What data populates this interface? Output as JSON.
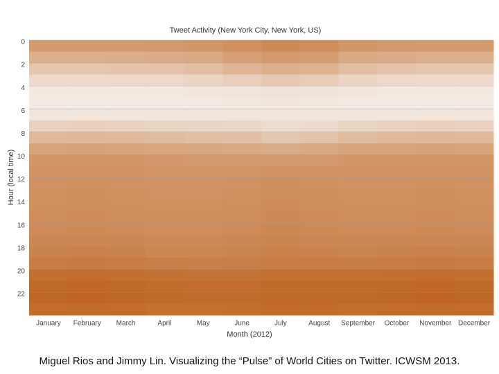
{
  "chart_data": {
    "type": "heatmap",
    "title": "Tweet Activity (New York City, New York, US)",
    "x_label": "Month (2012)",
    "y_label": "Hour (local time)",
    "categories": [
      "January",
      "February",
      "March",
      "April",
      "May",
      "June",
      "July",
      "August",
      "September",
      "October",
      "November",
      "December"
    ],
    "ylim": [
      0,
      24
    ],
    "yticks": [
      0,
      2,
      4,
      6,
      8,
      10,
      12,
      14,
      16,
      18,
      20,
      22
    ],
    "grid": true,
    "colorscale": [
      "#f6f2ee",
      "#b85408"
    ],
    "values": [
      [
        0.55,
        0.55,
        0.55,
        0.56,
        0.58,
        0.62,
        0.66,
        0.64,
        0.58,
        0.56,
        0.55,
        0.55
      ],
      [
        0.42,
        0.42,
        0.43,
        0.44,
        0.46,
        0.52,
        0.56,
        0.54,
        0.46,
        0.44,
        0.42,
        0.42
      ],
      [
        0.28,
        0.28,
        0.29,
        0.3,
        0.32,
        0.38,
        0.42,
        0.4,
        0.32,
        0.3,
        0.28,
        0.28
      ],
      [
        0.15,
        0.15,
        0.16,
        0.16,
        0.18,
        0.22,
        0.26,
        0.24,
        0.18,
        0.16,
        0.15,
        0.15
      ],
      [
        0.06,
        0.06,
        0.06,
        0.06,
        0.07,
        0.08,
        0.1,
        0.09,
        0.07,
        0.06,
        0.06,
        0.06
      ],
      [
        0.05,
        0.05,
        0.05,
        0.05,
        0.05,
        0.06,
        0.07,
        0.06,
        0.05,
        0.05,
        0.05,
        0.05
      ],
      [
        0.08,
        0.08,
        0.08,
        0.08,
        0.08,
        0.08,
        0.07,
        0.07,
        0.08,
        0.08,
        0.08,
        0.08
      ],
      [
        0.2,
        0.21,
        0.2,
        0.19,
        0.18,
        0.17,
        0.14,
        0.15,
        0.19,
        0.2,
        0.21,
        0.2
      ],
      [
        0.36,
        0.37,
        0.36,
        0.35,
        0.33,
        0.32,
        0.28,
        0.3,
        0.35,
        0.36,
        0.37,
        0.36
      ],
      [
        0.5,
        0.51,
        0.5,
        0.49,
        0.48,
        0.47,
        0.44,
        0.46,
        0.5,
        0.5,
        0.51,
        0.5
      ],
      [
        0.58,
        0.59,
        0.58,
        0.57,
        0.56,
        0.56,
        0.55,
        0.56,
        0.58,
        0.58,
        0.59,
        0.58
      ],
      [
        0.6,
        0.61,
        0.6,
        0.59,
        0.58,
        0.59,
        0.6,
        0.6,
        0.6,
        0.6,
        0.61,
        0.6
      ],
      [
        0.61,
        0.62,
        0.61,
        0.6,
        0.6,
        0.61,
        0.63,
        0.62,
        0.61,
        0.61,
        0.62,
        0.61
      ],
      [
        0.62,
        0.63,
        0.62,
        0.61,
        0.61,
        0.62,
        0.64,
        0.63,
        0.62,
        0.62,
        0.63,
        0.62
      ],
      [
        0.63,
        0.64,
        0.63,
        0.62,
        0.62,
        0.63,
        0.65,
        0.64,
        0.63,
        0.63,
        0.64,
        0.63
      ],
      [
        0.64,
        0.65,
        0.64,
        0.63,
        0.63,
        0.64,
        0.66,
        0.65,
        0.64,
        0.64,
        0.65,
        0.64
      ],
      [
        0.65,
        0.66,
        0.65,
        0.64,
        0.64,
        0.65,
        0.67,
        0.66,
        0.65,
        0.65,
        0.66,
        0.65
      ],
      [
        0.67,
        0.68,
        0.67,
        0.66,
        0.66,
        0.67,
        0.69,
        0.68,
        0.67,
        0.67,
        0.68,
        0.67
      ],
      [
        0.7,
        0.71,
        0.7,
        0.68,
        0.68,
        0.69,
        0.71,
        0.7,
        0.69,
        0.7,
        0.71,
        0.7
      ],
      [
        0.75,
        0.76,
        0.75,
        0.73,
        0.72,
        0.73,
        0.75,
        0.75,
        0.74,
        0.75,
        0.76,
        0.75
      ],
      [
        0.83,
        0.84,
        0.83,
        0.81,
        0.8,
        0.8,
        0.82,
        0.82,
        0.82,
        0.83,
        0.84,
        0.83
      ],
      [
        0.87,
        0.88,
        0.87,
        0.85,
        0.84,
        0.84,
        0.86,
        0.86,
        0.86,
        0.87,
        0.88,
        0.87
      ],
      [
        0.88,
        0.89,
        0.88,
        0.86,
        0.85,
        0.85,
        0.87,
        0.87,
        0.87,
        0.88,
        0.89,
        0.88
      ],
      [
        0.84,
        0.85,
        0.84,
        0.82,
        0.82,
        0.83,
        0.85,
        0.85,
        0.83,
        0.84,
        0.85,
        0.84
      ]
    ],
    "caption": "Miguel Rios and Jimmy Lin. Visualizing the “Pulse” of World Cities on Twitter. ICWSM 2013."
  }
}
